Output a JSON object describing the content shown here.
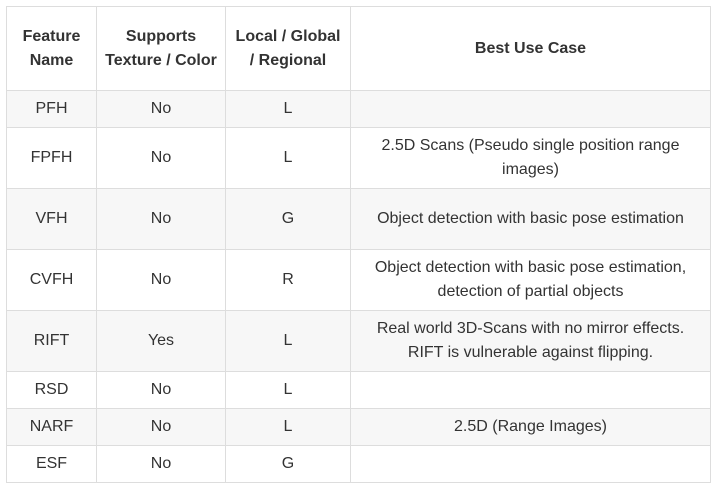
{
  "table": {
    "headers": [
      "Feature Name",
      "Supports Texture / Color",
      "Local / Global / Regional",
      "Best Use Case"
    ],
    "rows": [
      {
        "name": "PFH",
        "texture": "No",
        "scope": "L",
        "use_case": ""
      },
      {
        "name": "FPFH",
        "texture": "No",
        "scope": "L",
        "use_case": "2.5D Scans (Pseudo single position range images)"
      },
      {
        "name": "VFH",
        "texture": "No",
        "scope": "G",
        "use_case": "Object detection with basic pose estimation"
      },
      {
        "name": "CVFH",
        "texture": "No",
        "scope": "R",
        "use_case": "Object detection with basic pose estimation, detection of partial objects"
      },
      {
        "name": "RIFT",
        "texture": "Yes",
        "scope": "L",
        "use_case": "Real world 3D-Scans with no mirror effects. RIFT is vulnerable against flipping."
      },
      {
        "name": "RSD",
        "texture": "No",
        "scope": "L",
        "use_case": ""
      },
      {
        "name": "NARF",
        "texture": "No",
        "scope": "L",
        "use_case": "2.5D (Range Images)"
      },
      {
        "name": "ESF",
        "texture": "No",
        "scope": "G",
        "use_case": ""
      }
    ]
  }
}
